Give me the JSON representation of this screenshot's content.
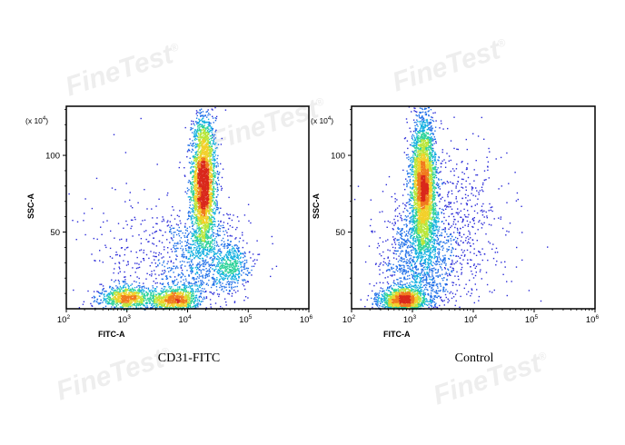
{
  "watermark": {
    "text": "FineTest",
    "mark": "®"
  },
  "colors": {
    "density": [
      "#2b2bd8",
      "#1f6fe8",
      "#13b0e0",
      "#2fd39a",
      "#b8e63a",
      "#f2d02a",
      "#f07a1e",
      "#d9281c"
    ],
    "axis": "#000000"
  },
  "chart_data": [
    {
      "type": "scatter",
      "subtype": "flow-cytometry density dot plot",
      "title": "",
      "caption": "CD31-FITC",
      "xlabel": "FITC-A",
      "ylabel": "SSC-A",
      "yscale_label": "(x 10",
      "yscale_exp": "4",
      "xscale": "log",
      "xlim": [
        100,
        1000000
      ],
      "ylim": [
        0,
        132
      ],
      "xticks": [
        {
          "mant": "10",
          "exp": "2"
        },
        {
          "mant": "10",
          "exp": "3"
        },
        {
          "mant": "10",
          "exp": "4"
        },
        {
          "mant": "10",
          "exp": "5"
        },
        {
          "mant": "10",
          "exp": "6"
        }
      ],
      "yticks": [
        50,
        100
      ],
      "grid": false,
      "populations": [
        {
          "x_center": 18000,
          "y_center": 82,
          "x_spread_log": 0.1,
          "y_spread": 22,
          "weight": 0.47,
          "y_min": 35,
          "y_max": 132
        },
        {
          "x_center": 1000,
          "y_center": 7,
          "x_spread_log": 0.22,
          "y_spread": 4,
          "weight": 0.14,
          "y_min": 0,
          "y_max": 25
        },
        {
          "x_center": 6000,
          "y_center": 6,
          "x_spread_log": 0.2,
          "y_spread": 4,
          "weight": 0.14,
          "y_min": 0,
          "y_max": 25
        },
        {
          "x_center": 50000,
          "y_center": 30,
          "x_spread_log": 0.16,
          "y_spread": 8,
          "weight": 0.07,
          "y_min": 10,
          "y_max": 55
        },
        {
          "x_center": 15000,
          "y_center": 30,
          "x_spread_log": 0.35,
          "y_spread": 18,
          "weight": 0.12,
          "y_min": 0,
          "y_max": 132
        },
        {
          "x_center": 3000,
          "y_center": 30,
          "x_spread_log": 0.6,
          "y_spread": 25,
          "weight": 0.06,
          "y_min": 0,
          "y_max": 132
        }
      ]
    },
    {
      "type": "scatter",
      "subtype": "flow-cytometry density dot plot",
      "title": "",
      "caption": "Control",
      "xlabel": "FITC-A",
      "ylabel": "SSC-A",
      "yscale_label": "(x 10",
      "yscale_exp": "4",
      "xscale": "log",
      "xlim": [
        100,
        1000000
      ],
      "ylim": [
        0,
        132
      ],
      "xticks": [
        {
          "mant": "10",
          "exp": "2"
        },
        {
          "mant": "10",
          "exp": "3"
        },
        {
          "mant": "10",
          "exp": "4"
        },
        {
          "mant": "10",
          "exp": "5"
        },
        {
          "mant": "10",
          "exp": "6"
        }
      ],
      "yticks": [
        50,
        100
      ],
      "grid": false,
      "populations": [
        {
          "x_center": 1500,
          "y_center": 80,
          "x_spread_log": 0.1,
          "y_spread": 22,
          "weight": 0.52,
          "y_min": 30,
          "y_max": 132
        },
        {
          "x_center": 700,
          "y_center": 6,
          "x_spread_log": 0.2,
          "y_spread": 4,
          "weight": 0.2,
          "y_min": 0,
          "y_max": 22
        },
        {
          "x_center": 1200,
          "y_center": 30,
          "x_spread_log": 0.3,
          "y_spread": 20,
          "weight": 0.18,
          "y_min": 0,
          "y_max": 132
        },
        {
          "x_center": 5000,
          "y_center": 50,
          "x_spread_log": 0.45,
          "y_spread": 30,
          "weight": 0.1,
          "y_min": 0,
          "y_max": 132
        }
      ]
    }
  ]
}
